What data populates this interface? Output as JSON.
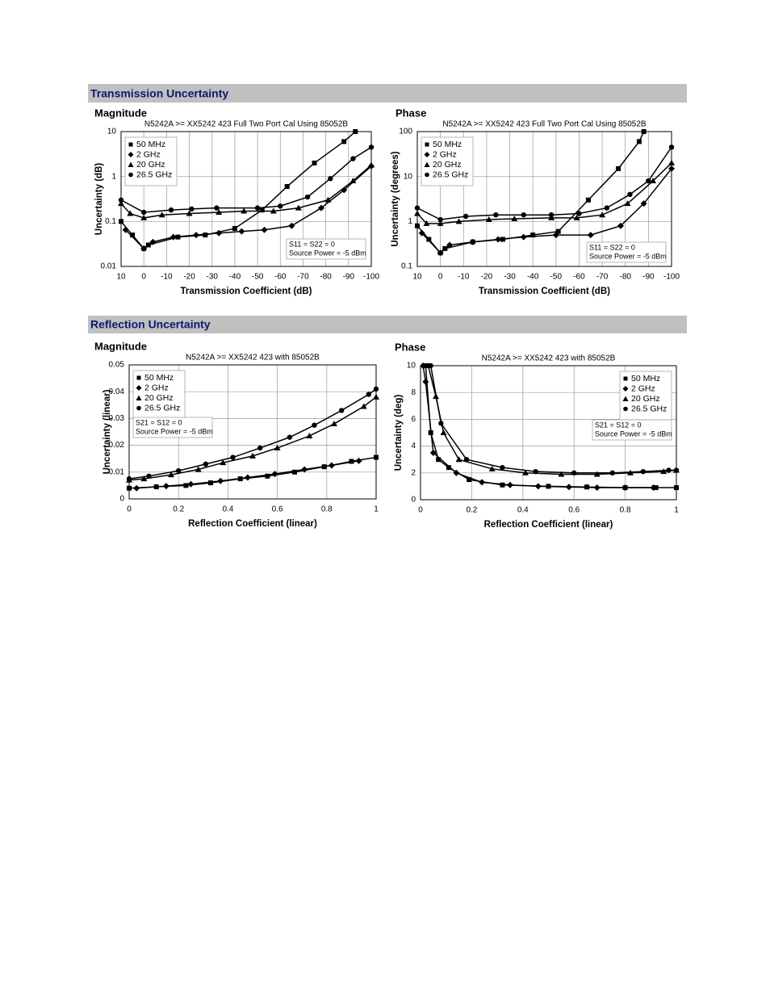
{
  "headings": [
    "Transmission Uncertainty",
    "Reflection Uncertainty"
  ],
  "chart_data": [
    {
      "type": "line",
      "title": "Magnitude",
      "subtitle": "N5242A >= XX5242 423 Full Two Port Cal Using 85052B",
      "xlabel": "Transmission Coefficient (dB)",
      "ylabel": "Uncertainty (dB)",
      "xlim": [
        10,
        -100
      ],
      "xticks": [
        10,
        0,
        -10,
        -20,
        -30,
        -40,
        -50,
        -60,
        -70,
        -80,
        -90,
        -100
      ],
      "ylim": [
        0.01,
        10
      ],
      "yticks": [
        0.01,
        0.1,
        1,
        10
      ],
      "yscale": "log",
      "grid": true,
      "legend": "upper left",
      "annotations": [
        "S11 = S22 = 0",
        "Source Power = -5 dBm"
      ],
      "series": [
        {
          "name": "50 MHz",
          "color": "#000000",
          "marker": "square",
          "x": [
            10,
            5,
            0,
            -2,
            -15,
            -27,
            -40,
            -52,
            -63,
            -75,
            -88,
            -93
          ],
          "values": [
            0.1,
            0.05,
            0.025,
            0.03,
            0.045,
            0.05,
            0.07,
            0.18,
            0.6,
            2,
            6,
            10
          ]
        },
        {
          "name": "2 GHz",
          "color": "#000000",
          "marker": "diamond",
          "x": [
            8,
            0,
            -4,
            -13,
            -23,
            -33,
            -43,
            -53,
            -65,
            -78,
            -88,
            -100
          ],
          "values": [
            0.065,
            0.025,
            0.035,
            0.045,
            0.05,
            0.055,
            0.06,
            0.065,
            0.08,
            0.2,
            0.5,
            1.7
          ]
        },
        {
          "name": "20 GHz",
          "color": "#000000",
          "marker": "triangle",
          "x": [
            10,
            6,
            0,
            -8,
            -20,
            -33,
            -44,
            -57,
            -68,
            -81,
            -92,
            -100
          ],
          "values": [
            0.25,
            0.15,
            0.12,
            0.14,
            0.15,
            0.16,
            0.17,
            0.17,
            0.2,
            0.3,
            0.8,
            1.8
          ]
        },
        {
          "name": "26.5 GHz",
          "color": "#000000",
          "marker": "circle",
          "x": [
            10,
            0,
            -12,
            -21,
            -32,
            -50,
            -60,
            -72,
            -82,
            -92,
            -100
          ],
          "values": [
            0.3,
            0.16,
            0.18,
            0.19,
            0.2,
            0.2,
            0.22,
            0.35,
            0.9,
            2.5,
            4.5
          ]
        }
      ]
    },
    {
      "type": "line",
      "title": "Phase",
      "subtitle": "N5242A >= XX5242 423 Full Two Port Cal Using 85052B",
      "xlabel": "Transmission Coefficient (dB)",
      "ylabel": "Uncertainty (degrees)",
      "xlim": [
        10,
        -100
      ],
      "xticks": [
        10,
        0,
        -10,
        -20,
        -30,
        -40,
        -50,
        -60,
        -70,
        -80,
        -90,
        -100
      ],
      "ylim": [
        0.1,
        100
      ],
      "yticks": [
        0.1,
        1,
        10,
        100
      ],
      "yscale": "log",
      "grid": true,
      "legend": "upper left",
      "annotations": [
        "S11 = S22 = 0",
        "Source Power = -5 dBm"
      ],
      "series": [
        {
          "name": "50 MHz",
          "color": "#000000",
          "marker": "square",
          "x": [
            10,
            5,
            0,
            -2,
            -14,
            -27,
            -40,
            -51,
            -64,
            -77,
            -86,
            -88
          ],
          "values": [
            0.8,
            0.4,
            0.2,
            0.25,
            0.35,
            0.4,
            0.5,
            0.6,
            3,
            15,
            60,
            100
          ]
        },
        {
          "name": "2 GHz",
          "color": "#000000",
          "marker": "diamond",
          "x": [
            8,
            0,
            -4,
            -14,
            -25,
            -36,
            -50,
            -65,
            -78,
            -88,
            -100
          ],
          "values": [
            0.55,
            0.2,
            0.3,
            0.35,
            0.4,
            0.45,
            0.5,
            0.5,
            0.8,
            2.5,
            15
          ]
        },
        {
          "name": "20 GHz",
          "color": "#000000",
          "marker": "triangle",
          "x": [
            10,
            6,
            0,
            -8,
            -21,
            -32,
            -48,
            -59,
            -70,
            -81,
            -92,
            -100
          ],
          "values": [
            1.5,
            0.9,
            0.9,
            1,
            1.1,
            1.15,
            1.2,
            1.2,
            1.4,
            2.5,
            8,
            20
          ]
        },
        {
          "name": "26.5 GHz",
          "color": "#000000",
          "marker": "circle",
          "x": [
            10,
            0,
            -11,
            -24,
            -36,
            -48,
            -60,
            -72,
            -82,
            -90,
            -100
          ],
          "values": [
            2,
            1.1,
            1.3,
            1.4,
            1.4,
            1.4,
            1.5,
            2,
            4,
            8,
            45
          ]
        }
      ]
    },
    {
      "type": "line",
      "title": "Magnitude",
      "subtitle": "N5242A >= XX5242 423 with 85052B",
      "xlabel": "Reflection Coefficient (linear)",
      "ylabel": "Uncertainty (linear)",
      "xlim": [
        0,
        1
      ],
      "xticks": [
        0,
        0.2,
        0.4,
        0.6,
        0.8,
        1
      ],
      "ylim": [
        0,
        0.05
      ],
      "yticks": [
        0,
        0.01,
        0.02,
        0.03,
        0.04,
        0.05
      ],
      "yscale": "linear",
      "grid": true,
      "legend": "upper left",
      "annotations": [
        "S21 = S12 = 0",
        "Source Power = -5 dBm"
      ],
      "series": [
        {
          "name": "50 MHz",
          "color": "#000000",
          "marker": "square",
          "x": [
            0,
            0.11,
            0.23,
            0.33,
            0.45,
            0.56,
            0.67,
            0.79,
            0.9,
            1
          ],
          "values": [
            0.004,
            0.0045,
            0.005,
            0.006,
            0.0075,
            0.0085,
            0.01,
            0.012,
            0.014,
            0.0155
          ]
        },
        {
          "name": "2 GHz",
          "color": "#000000",
          "marker": "diamond",
          "x": [
            0.03,
            0.15,
            0.25,
            0.37,
            0.48,
            0.59,
            0.71,
            0.82,
            0.93
          ],
          "values": [
            0.004,
            0.0048,
            0.0055,
            0.0067,
            0.008,
            0.0093,
            0.011,
            0.0125,
            0.0142
          ]
        },
        {
          "name": "20 GHz",
          "color": "#000000",
          "marker": "triangle",
          "x": [
            0,
            0.06,
            0.17,
            0.28,
            0.38,
            0.5,
            0.6,
            0.73,
            0.83,
            0.95,
            1
          ],
          "values": [
            0.007,
            0.0075,
            0.009,
            0.011,
            0.0135,
            0.016,
            0.019,
            0.0235,
            0.028,
            0.0345,
            0.038
          ]
        },
        {
          "name": "26.5 GHz",
          "color": "#000000",
          "marker": "circle",
          "x": [
            0,
            0.08,
            0.2,
            0.31,
            0.42,
            0.53,
            0.65,
            0.75,
            0.86,
            0.97,
            1
          ],
          "values": [
            0.0075,
            0.0085,
            0.0105,
            0.013,
            0.0155,
            0.019,
            0.023,
            0.0275,
            0.033,
            0.039,
            0.041
          ]
        }
      ]
    },
    {
      "type": "line",
      "title": "Phase",
      "subtitle": "N5242A >= XX5242 423 with 85052B",
      "xlabel": "Reflection Coefficient (linear)",
      "ylabel": "Uncertainty (deg)",
      "xlim": [
        0,
        1
      ],
      "xticks": [
        0,
        0.2,
        0.4,
        0.6,
        0.8,
        1
      ],
      "ylim": [
        0,
        10
      ],
      "yticks": [
        0,
        2,
        4,
        6,
        8,
        10
      ],
      "yscale": "linear",
      "grid": true,
      "legend": "upper right",
      "annotations": [
        "S21 = S12 = 0",
        "Source Power = -5 dBm"
      ],
      "series": [
        {
          "name": "50 MHz",
          "color": "#000000",
          "marker": "square",
          "x": [
            0.02,
            0.04,
            0.07,
            0.11,
            0.19,
            0.32,
            0.5,
            0.65,
            0.8,
            0.92,
            1
          ],
          "values": [
            10,
            5,
            3,
            2.4,
            1.5,
            1.1,
            1,
            0.95,
            0.9,
            0.9,
            0.9
          ]
        },
        {
          "name": "2 GHz",
          "color": "#000000",
          "marker": "diamond",
          "x": [
            0.01,
            0.02,
            0.05,
            0.14,
            0.24,
            0.35,
            0.46,
            0.58,
            0.69,
            0.8,
            0.91
          ],
          "values": [
            10,
            8.8,
            3.5,
            2,
            1.3,
            1.1,
            1,
            0.95,
            0.9,
            0.9,
            0.9
          ]
        },
        {
          "name": "20 GHz",
          "color": "#000000",
          "marker": "triangle",
          "x": [
            0.03,
            0.06,
            0.09,
            0.15,
            0.28,
            0.41,
            0.55,
            0.69,
            0.82,
            0.95,
            1
          ],
          "values": [
            10,
            7.7,
            5,
            3,
            2.3,
            2,
            1.9,
            1.9,
            2,
            2.1,
            2.2
          ]
        },
        {
          "name": "26.5 GHz",
          "color": "#000000",
          "marker": "circle",
          "x": [
            0.04,
            0.08,
            0.18,
            0.32,
            0.45,
            0.6,
            0.75,
            0.87,
            0.97,
            1
          ],
          "values": [
            10,
            5.7,
            3,
            2.4,
            2.1,
            2,
            2,
            2.1,
            2.2,
            2.2
          ]
        }
      ]
    }
  ]
}
